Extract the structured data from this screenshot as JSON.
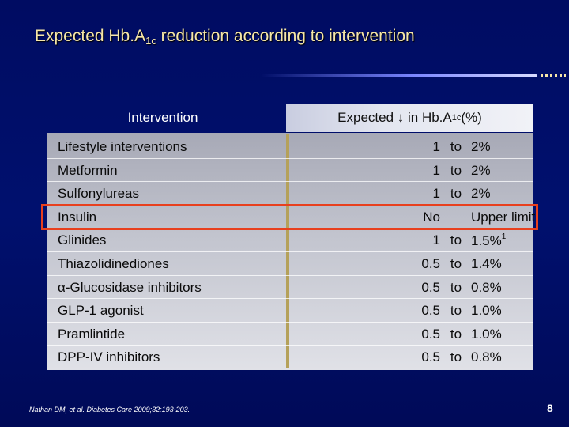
{
  "title": {
    "main": "Expected Hb.A",
    "sub": "1c",
    "rest": " reduction according  to intervention"
  },
  "table": {
    "col_intervention": "Intervention",
    "col_expected": {
      "prefix": "Expected ↓ in Hb.A",
      "sub": "1c",
      "suffix": " (%)"
    },
    "rows": [
      {
        "name": "Lifestyle interventions",
        "lo": "1",
        "to": "to",
        "hi": "2%"
      },
      {
        "name": "Metformin",
        "lo": "1",
        "to": "to",
        "hi": "2%"
      },
      {
        "name": "Sulfonylureas",
        "lo": "1",
        "to": "to",
        "hi": "2%"
      },
      {
        "name": "Insulin",
        "lo": "No",
        "to": "",
        "hi": "Upper limit"
      },
      {
        "name": "Glinides",
        "lo": "1",
        "to": "to",
        "hi": "1.5%",
        "footnote": "1"
      },
      {
        "name": "Thiazolidinediones",
        "lo": "0.5",
        "to": "to",
        "hi": "1.4%"
      },
      {
        "name": "α-Glucosidase inhibitors",
        "lo": "0.5",
        "to": "to",
        "hi": "0.8%"
      },
      {
        "name": "GLP-1 agonist",
        "lo": "0.5",
        "to": "to",
        "hi": "1.0%"
      },
      {
        "name": "Pramlintide",
        "lo": "0.5",
        "to": "to",
        "hi": "1.0%"
      },
      {
        "name": "DPP-IV inhibitors",
        "lo": "0.5",
        "to": "to",
        "hi": "0.8%"
      }
    ],
    "highlighted_row": "Insulin"
  },
  "citation": "Nathan DM, et al. Diabetes Care 2009;32:193-203.",
  "page_number": "8",
  "colors": {
    "background": "#000c62",
    "title": "#f5e6a8",
    "highlight_border": "#e8401e",
    "header_band": "#e3e6f0"
  }
}
